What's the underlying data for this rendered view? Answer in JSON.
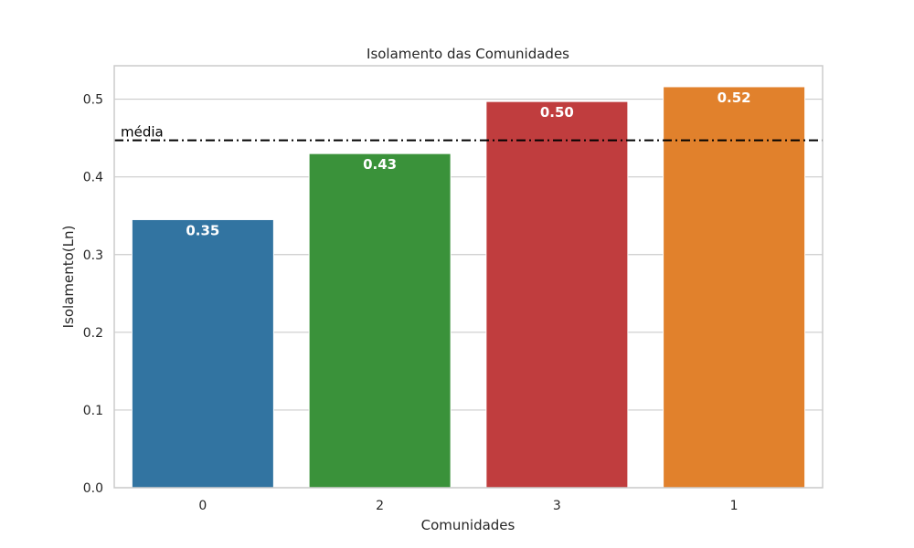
{
  "chart_data": {
    "type": "bar",
    "title": "Isolamento das Comunidades",
    "xlabel": "Comunidades",
    "ylabel": "Isolamento(Ln)",
    "categories": [
      "0",
      "2",
      "3",
      "1"
    ],
    "values": [
      0.345,
      0.43,
      0.497,
      0.516
    ],
    "data_labels": [
      "0.35",
      "0.43",
      "0.50",
      "0.52"
    ],
    "colors": [
      "#3274a1",
      "#3a923a",
      "#c03d3e",
      "#e1812c"
    ],
    "ylim": [
      0,
      0.543
    ],
    "yticks": [
      0.0,
      0.1,
      0.2,
      0.3,
      0.4,
      0.5
    ],
    "ytick_labels": [
      "0.0",
      "0.1",
      "0.2",
      "0.3",
      "0.4",
      "0.5"
    ],
    "grid": true,
    "mean_line": {
      "value": 0.447,
      "label": "média",
      "color": "#000000",
      "style": "dash-dot"
    }
  }
}
